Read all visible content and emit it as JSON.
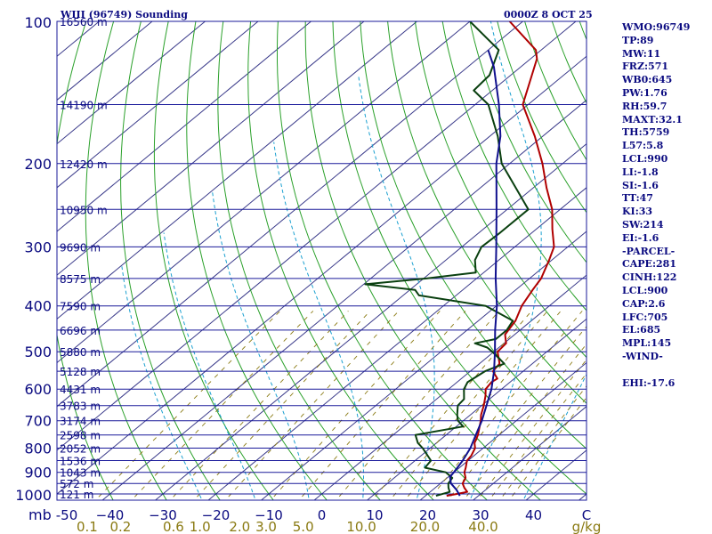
{
  "header": {
    "station": "WIII (96749) Sounding",
    "time": "0000Z  8 OCT 25"
  },
  "chart_data": {
    "type": "line",
    "title": "WIII (96749) Sounding",
    "subtitle": "0000Z  8 OCT 25",
    "diagram": "skew-T log-p",
    "pressure_levels_mb": [
      100,
      200,
      300,
      400,
      500,
      600,
      700,
      800,
      900,
      1000
    ],
    "pressure_unit_label": "mb",
    "xlim_c": [
      -50,
      50
    ],
    "temperature_ticks_c": [
      -50,
      -40,
      -30,
      -20,
      -10,
      0,
      10,
      20,
      30,
      40
    ],
    "temperature_tick_labels": [
      "-50",
      "−40",
      "−30",
      "−20",
      "−10",
      "0",
      "10",
      "20",
      "30",
      "40"
    ],
    "temperature_unit_label": "C",
    "mixing_ratio_ticks": [
      {
        "label": "0.1",
        "t_c": -44.3
      },
      {
        "label": "0.2",
        "t_c": -38.0
      },
      {
        "label": "0.6",
        "t_c": -28.0
      },
      {
        "label": "1.0",
        "t_c": -23.0
      },
      {
        "label": "2.0",
        "t_c": -15.5
      },
      {
        "label": "3.0",
        "t_c": -10.5
      },
      {
        "label": "5.0",
        "t_c": -3.5
      },
      {
        "label": "10.0",
        "t_c": 7.5
      },
      {
        "label": "20.0",
        "t_c": 19.5
      },
      {
        "label": "40.0",
        "t_c": 30.5
      }
    ],
    "mixing_ratio_unit": "g/kg",
    "height_labels": [
      {
        "p": 100,
        "label": "16560 m"
      },
      {
        "p": 150,
        "label": "14190 m"
      },
      {
        "p": 200,
        "label": "12420 m"
      },
      {
        "p": 250,
        "label": "10950 m"
      },
      {
        "p": 300,
        "label": "9690 m"
      },
      {
        "p": 350,
        "label": "8575 m"
      },
      {
        "p": 400,
        "label": "7590 m"
      },
      {
        "p": 450,
        "label": "6696 m"
      },
      {
        "p": 500,
        "label": "5880 m"
      },
      {
        "p": 550,
        "label": "5128 m"
      },
      {
        "p": 600,
        "label": "4431 m"
      },
      {
        "p": 650,
        "label": "3783 m"
      },
      {
        "p": 700,
        "label": "3174 m"
      },
      {
        "p": 750,
        "label": "2598 m"
      },
      {
        "p": 800,
        "label": "2052 m"
      },
      {
        "p": 850,
        "label": "1536 m"
      },
      {
        "p": 900,
        "label": "1043 m"
      },
      {
        "p": 950,
        "label": "572 m"
      },
      {
        "p": 1000,
        "label": "121 m"
      }
    ],
    "series": [
      {
        "name": "Temperature",
        "color": "#b00000",
        "points": [
          [
            1009,
            24.0
          ],
          [
            1000,
            25.5
          ],
          [
            990,
            27.0
          ],
          [
            970,
            25.5
          ],
          [
            950,
            24.2
          ],
          [
            925,
            23.5
          ],
          [
            900,
            22.0
          ],
          [
            880,
            21.2
          ],
          [
            850,
            19.8
          ],
          [
            830,
            19.5
          ],
          [
            800,
            18.5
          ],
          [
            780,
            17.2
          ],
          [
            750,
            16.0
          ],
          [
            700,
            13.3
          ],
          [
            680,
            12.0
          ],
          [
            650,
            10.4
          ],
          [
            620,
            8.5
          ],
          [
            600,
            7.0
          ],
          [
            580,
            6.5
          ],
          [
            570,
            6.8
          ],
          [
            550,
            4.3
          ],
          [
            530,
            3.8
          ],
          [
            500,
            0.7
          ],
          [
            480,
            0.4
          ],
          [
            460,
            -1.8
          ],
          [
            430,
            -3.0
          ],
          [
            400,
            -5.2
          ],
          [
            370,
            -6.8
          ],
          [
            350,
            -7.8
          ],
          [
            320,
            -10.5
          ],
          [
            300,
            -12.6
          ],
          [
            275,
            -17.0
          ],
          [
            250,
            -21.5
          ],
          [
            225,
            -27.5
          ],
          [
            200,
            -33.8
          ],
          [
            175,
            -41.5
          ],
          [
            150,
            -51.0
          ],
          [
            130,
            -56.0
          ],
          [
            120,
            -58.8
          ],
          [
            115,
            -61.0
          ],
          [
            100,
            -72.5
          ]
        ]
      },
      {
        "name": "Dewpoint",
        "color": "#0a4010",
        "points": [
          [
            1009,
            22.0
          ],
          [
            990,
            23.7
          ],
          [
            970,
            22.5
          ],
          [
            950,
            21.5
          ],
          [
            925,
            21.0
          ],
          [
            900,
            18.5
          ],
          [
            880,
            13.5
          ],
          [
            850,
            13.0
          ],
          [
            800,
            8.6
          ],
          [
            780,
            6.5
          ],
          [
            750,
            4.2
          ],
          [
            720,
            11.3
          ],
          [
            700,
            9.0
          ],
          [
            680,
            7.5
          ],
          [
            650,
            5.5
          ],
          [
            630,
            5.2
          ],
          [
            600,
            2.9
          ],
          [
            580,
            2.0
          ],
          [
            550,
            2.8
          ],
          [
            530,
            4.7
          ],
          [
            500,
            -0.3
          ],
          [
            490,
            -2.2
          ],
          [
            480,
            -5.5
          ],
          [
            470,
            -2.5
          ],
          [
            450,
            -2.5
          ],
          [
            430,
            -3.5
          ],
          [
            400,
            -12.0
          ],
          [
            380,
            -27.0
          ],
          [
            370,
            -29.0
          ],
          [
            360,
            -39.7
          ],
          [
            350,
            -29.5
          ],
          [
            340,
            -21.5
          ],
          [
            320,
            -24.5
          ],
          [
            300,
            -26.3
          ],
          [
            280,
            -26.0
          ],
          [
            250,
            -26.0
          ],
          [
            200,
            -41.5
          ],
          [
            175,
            -48.5
          ],
          [
            150,
            -57.5
          ],
          [
            140,
            -63.5
          ],
          [
            130,
            -64.0
          ],
          [
            115,
            -68.0
          ],
          [
            100,
            -80.0
          ]
        ]
      },
      {
        "name": "Parcel",
        "color": "#10108e",
        "points": [
          [
            1009,
            26.5
          ],
          [
            980,
            24.5
          ],
          [
            950,
            22.0
          ],
          [
            920,
            20.3
          ],
          [
            900,
            20.0
          ],
          [
            850,
            19.0
          ],
          [
            800,
            17.6
          ],
          [
            750,
            15.6
          ],
          [
            700,
            13.5
          ],
          [
            650,
            10.9
          ],
          [
            600,
            8.1
          ],
          [
            550,
            4.5
          ],
          [
            500,
            0.2
          ],
          [
            450,
            -4.7
          ],
          [
            400,
            -9.9
          ],
          [
            350,
            -16.4
          ],
          [
            300,
            -23.5
          ],
          [
            250,
            -32.0
          ],
          [
            200,
            -42.5
          ],
          [
            175,
            -48.0
          ],
          [
            150,
            -55.5
          ],
          [
            125,
            -65.0
          ],
          [
            115,
            -70.0
          ]
        ]
      }
    ]
  },
  "indices": [
    "WMO:96749",
    "TP:89",
    "MW:11",
    "FRZ:571",
    "WB0:645",
    "PW:1.76",
    "RH:59.7",
    "MAXT:32.1",
    "TH:5759",
    "L57:5.8",
    "LCL:990",
    "LI:-1.8",
    "SI:-1.6",
    "TT:47",
    "KI:33",
    "SW:214",
    "EI:-1.6",
    "-PARCEL-",
    "CAPE:281",
    "CINH:122",
    "LCL:900",
    "CAP:2.6",
    "LFC:705",
    "EL:685",
    "MPL:145",
    "-WIND-",
    "",
    "EHI:-17.6"
  ],
  "colors": {
    "isobar": "#1a1a9a",
    "isotherm": "#3a3a8a",
    "dry_adiabat": "#2aa02a",
    "moist_adiabat": "#1aa0d0",
    "mixing_ratio": "#8a7a12",
    "text": "#0a0a80",
    "tick_label_wind": "#8a7a12"
  }
}
